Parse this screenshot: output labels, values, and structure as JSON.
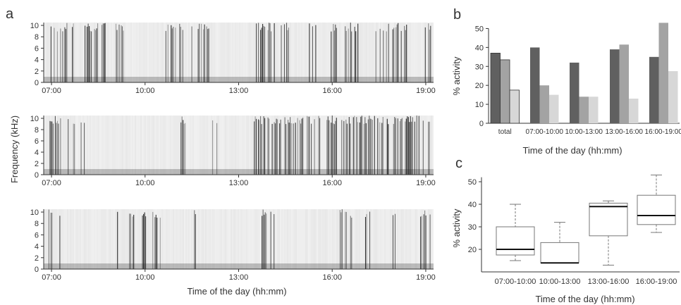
{
  "panels": {
    "a": "a",
    "b": "b",
    "c": "c"
  },
  "chart_data": [
    {
      "type": "heatmap",
      "panel": "a",
      "description_of_marks": "three spectrograms of sound activity",
      "ylabel": "Frequency (kHz)",
      "xlabel": "Time of the day (hh:mm)",
      "yticks": [
        "0",
        "2",
        "4",
        "6",
        "8",
        "10"
      ],
      "ylim": [
        0,
        10.5
      ],
      "xticks": [
        "07:00",
        "10:00",
        "13:00",
        "16:00",
        "19:00"
      ],
      "xlim": [
        "06:45",
        "19:15"
      ],
      "spectrograms": [
        {
          "activity_bands": [
            [
              "06:55",
              "07:30"
            ],
            [
              "07:40",
              "08:45"
            ],
            [
              "09:00",
              "09:20"
            ],
            [
              "10:40",
              "11:15"
            ],
            [
              "11:30",
              "12:05"
            ],
            [
              "13:30",
              "14:10"
            ],
            [
              "14:20",
              "14:40"
            ],
            [
              "15:10",
              "15:30"
            ],
            [
              "15:50",
              "16:10"
            ],
            [
              "16:25",
              "16:55"
            ],
            [
              "17:20",
              "18:25"
            ],
            [
              "18:55",
              "19:10"
            ]
          ]
        },
        {
          "activity_bands": [
            [
              "06:55",
              "07:20"
            ],
            [
              "07:30",
              "07:45"
            ],
            [
              "07:55",
              "08:05"
            ],
            [
              "11:05",
              "11:25"
            ],
            [
              "12:10",
              "12:20"
            ],
            [
              "13:30",
              "15:40"
            ],
            [
              "15:50",
              "19:10"
            ]
          ]
        },
        {
          "activity_bands": [
            [
              "06:55",
              "07:05"
            ],
            [
              "07:10",
              "07:20"
            ],
            [
              "09:05",
              "09:15"
            ],
            [
              "09:30",
              "09:40"
            ],
            [
              "09:55",
              "10:05"
            ],
            [
              "10:15",
              "10:30"
            ],
            [
              "11:35",
              "11:45"
            ],
            [
              "13:45",
              "13:55"
            ],
            [
              "14:00",
              "14:10"
            ],
            [
              "16:15",
              "16:45"
            ],
            [
              "17:00",
              "17:20"
            ],
            [
              "17:55",
              "18:05"
            ],
            [
              "18:50",
              "19:10"
            ]
          ]
        }
      ],
      "colors": {
        "ink": "#1e1e1e",
        "paper": "#ffffff"
      }
    },
    {
      "type": "bar",
      "panel": "b",
      "categories": [
        "total",
        "07:00-10:00",
        "10:00-13:00",
        "13:00-16:00",
        "16:00-19:00"
      ],
      "series": [
        {
          "values": [
            37,
            40,
            32,
            39,
            35
          ],
          "color": "#606060"
        },
        {
          "values": [
            33.5,
            20,
            14,
            41.5,
            53
          ],
          "color": "#a3a3a3"
        },
        {
          "values": [
            17.5,
            15,
            14,
            13,
            27.5
          ],
          "color": "#d7d7d7"
        }
      ],
      "ylabel": "% activity",
      "xlabel": "Time of the day (hh:mm)",
      "ylim": [
        0,
        55
      ],
      "yticks": [
        "0",
        "10",
        "20",
        "30",
        "40",
        "50"
      ]
    },
    {
      "type": "box",
      "panel": "c",
      "categories": [
        "07:00-10:00",
        "10:00-13:00",
        "13:00-16:00",
        "16:00-19:00"
      ],
      "boxes": [
        {
          "min": 15,
          "q1": 17.5,
          "median": 20,
          "q3": 30,
          "max": 40
        },
        {
          "min": 14,
          "q1": 14,
          "median": 14,
          "q3": 23,
          "max": 32
        },
        {
          "min": 13,
          "q1": 26,
          "median": 39,
          "q3": 40.5,
          "max": 41.5
        },
        {
          "min": 27.5,
          "q1": 31,
          "median": 35,
          "q3": 44,
          "max": 53
        }
      ],
      "ylabel": "% activity",
      "xlabel": "Time of the day (hh:mm)",
      "ylim": [
        10,
        55
      ],
      "yticks": [
        "20",
        "30",
        "40",
        "50"
      ]
    }
  ]
}
